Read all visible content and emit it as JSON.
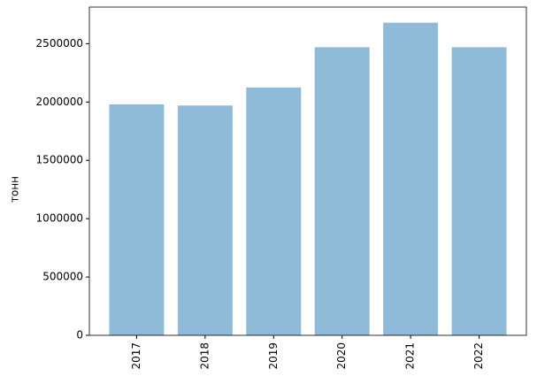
{
  "chart_data": {
    "type": "bar",
    "y_label": "тонн",
    "categories": [
      "2017",
      "2018",
      "2019",
      "2020",
      "2021",
      "2022"
    ],
    "values": [
      1980000,
      1970000,
      2125000,
      2470000,
      2680000,
      2470000
    ],
    "color": "#8fbbd9",
    "ylim": [
      0,
      2814000
    ],
    "yticks": [
      0,
      500000,
      1000000,
      1500000,
      2000000,
      2500000
    ],
    "grid": false
  }
}
